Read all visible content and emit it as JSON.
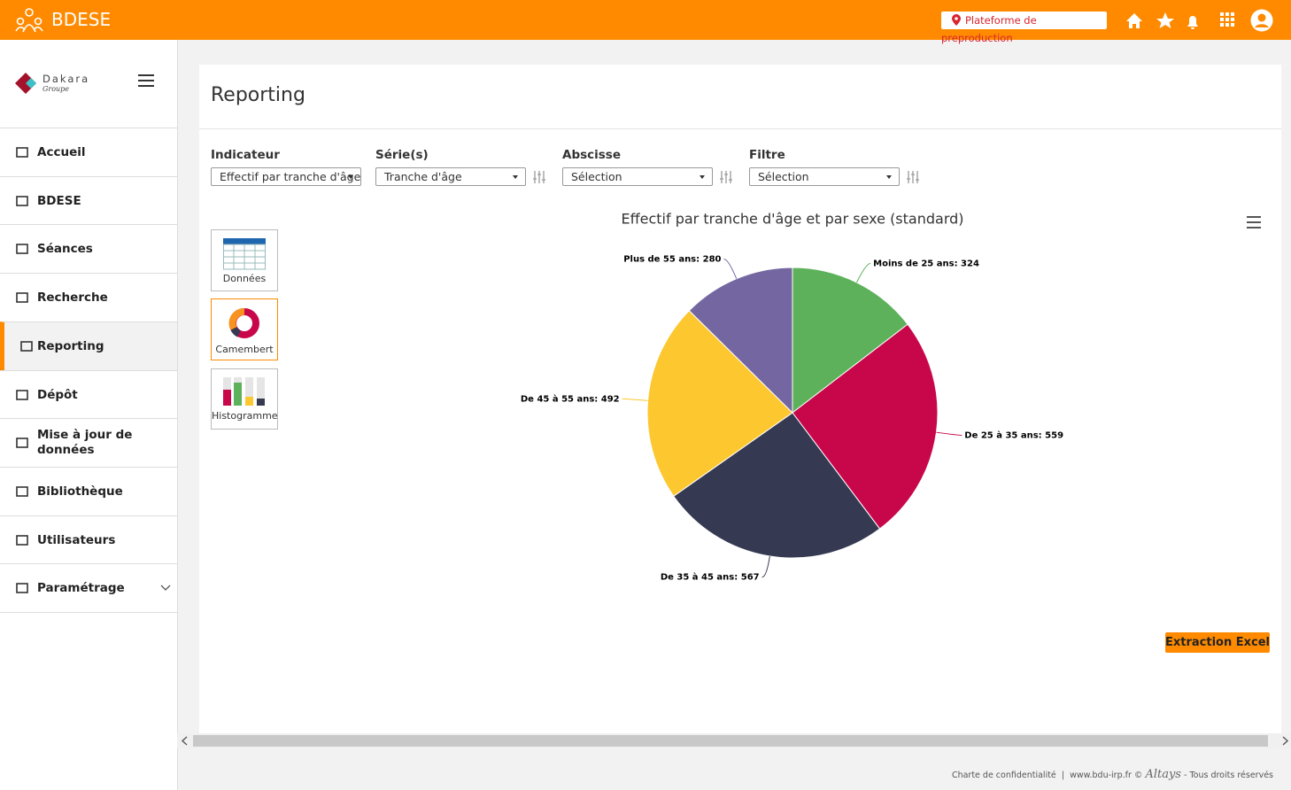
{
  "header": {
    "app_name": "BDESE",
    "environment": "Plateforme de preproduction"
  },
  "sidebar": {
    "logo": "Dakara",
    "logo_sub": "Groupe",
    "menu": [
      "Accueil",
      "BDESE",
      "Séances",
      "Recherche",
      "Reporting",
      "Dépôt",
      "Mise à jour de données",
      "Bibliothèque",
      "Utilisateurs",
      "Paramétrage"
    ]
  },
  "page": {
    "title": "Reporting",
    "filters": [
      {
        "label": "Indicateur",
        "value": "Effectif par tranche d'âge"
      },
      {
        "label": "Série(s)",
        "value": "Tranche d'âge"
      },
      {
        "label": "Abscisse",
        "value": "Sélection"
      },
      {
        "label": "Filtre",
        "value": "Sélection"
      }
    ],
    "chart_types": [
      "Données",
      "Camembert",
      "Histogramme"
    ],
    "export_button": "Extraction Excel"
  },
  "footer": {
    "privacy": "Charte de confidentialité",
    "site": "www.bdu-irp.fr ©",
    "brand": "Altays",
    "rights": "- Tous droits réservés"
  },
  "chart_data": {
    "type": "pie",
    "title": "Effectif par tranche d'âge et par sexe (standard)",
    "values": [
      324,
      559,
      567,
      492,
      280
    ],
    "value_labels": [
      "Moins de 25 ans: 324",
      "De 25 à 35 ans: 559",
      "De 35 à 45 ans: 567",
      "De 45 à 55 ans: 492",
      "Plus de 55 ans: 280"
    ],
    "colors": [
      "#5db15a",
      "#c8074b",
      "#353a52",
      "#fcc72f",
      "#7467a1"
    ]
  }
}
